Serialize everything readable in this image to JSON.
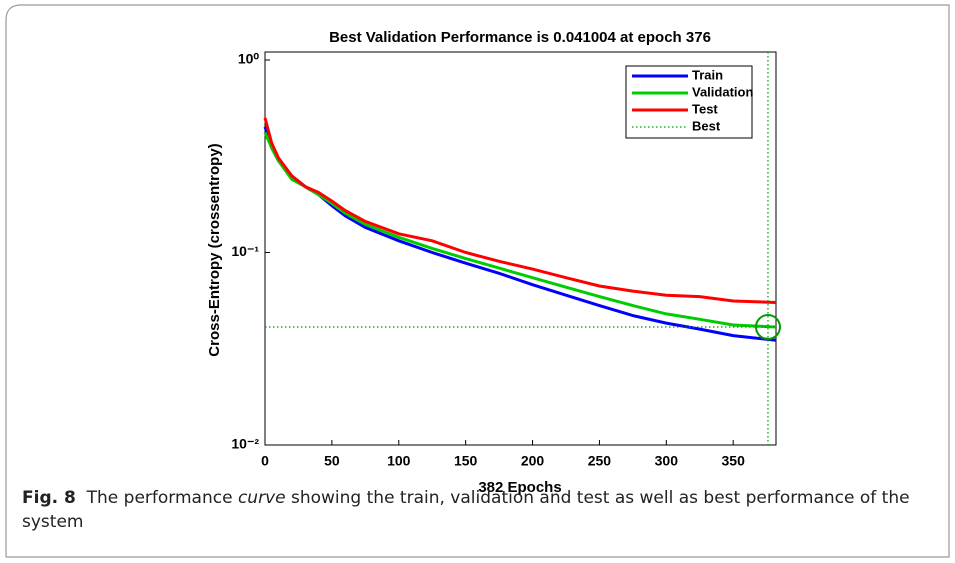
{
  "chart_data": {
    "type": "line",
    "title": "Best Validation Performance is 0.041004 at epoch 376",
    "xlabel": "382 Epochs",
    "ylabel": "Cross-Entropy  (crossentropy)",
    "x": [
      0,
      5,
      10,
      20,
      30,
      40,
      50,
      60,
      75,
      100,
      125,
      150,
      175,
      200,
      225,
      250,
      275,
      300,
      325,
      350,
      382
    ],
    "series": [
      {
        "name": "Train",
        "color": "#0000ff",
        "values": [
          0.45,
          0.35,
          0.3,
          0.25,
          0.22,
          0.2,
          0.175,
          0.155,
          0.135,
          0.115,
          0.1,
          0.088,
          0.078,
          0.068,
          0.06,
          0.053,
          0.047,
          0.043,
          0.04,
          0.037,
          0.035
        ]
      },
      {
        "name": "Validation",
        "color": "#00cc00",
        "values": [
          0.42,
          0.35,
          0.3,
          0.24,
          0.22,
          0.2,
          0.18,
          0.16,
          0.14,
          0.12,
          0.105,
          0.093,
          0.083,
          0.074,
          0.066,
          0.059,
          0.053,
          0.048,
          0.045,
          0.042,
          0.041
        ]
      },
      {
        "name": "Test",
        "color": "#ff0000",
        "values": [
          0.5,
          0.37,
          0.31,
          0.25,
          0.22,
          0.205,
          0.185,
          0.165,
          0.145,
          0.125,
          0.115,
          0.1,
          0.09,
          0.082,
          0.074,
          0.067,
          0.063,
          0.06,
          0.059,
          0.056,
          0.055
        ]
      }
    ],
    "best": {
      "name": "Best",
      "x": 376,
      "y": 0.041004,
      "color": "#009900"
    },
    "xlim": [
      0,
      382
    ],
    "xticks": [
      0,
      50,
      100,
      150,
      200,
      250,
      300,
      350
    ],
    "ylim": [
      0.01,
      1
    ],
    "log_y": true,
    "yticks": [
      {
        "value": 0.01,
        "label": "10⁻²"
      },
      {
        "value": 0.1,
        "label": "10⁻¹"
      },
      {
        "value": 1,
        "label": "10⁰"
      }
    ],
    "legend": "upper right"
  },
  "caption": {
    "label": "Fig. 8",
    "parts": [
      "The performance ",
      "curve",
      " showing the train, validation and test as well as best performance of the system"
    ]
  }
}
